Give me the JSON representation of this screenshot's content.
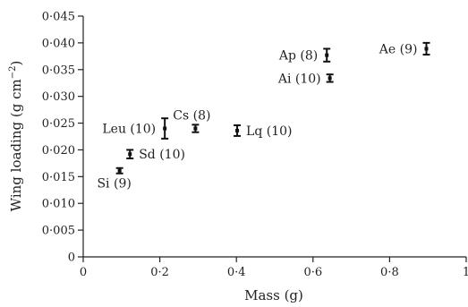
{
  "chart_data": {
    "type": "scatter",
    "xlabel": "Mass (g)",
    "ylabel": "Wing loading (g cm",
    "ylabel_sup": "−2",
    "ylabel_suffix": ")",
    "xlim": [
      0,
      1
    ],
    "ylim": [
      0,
      0.045
    ],
    "xticks": [
      0,
      0.2,
      0.4,
      0.6,
      0.8,
      1
    ],
    "xtick_labels": [
      "0",
      "0·2",
      "0·4",
      "0·6",
      "0·8",
      "1"
    ],
    "yticks": [
      0,
      0.005,
      0.01,
      0.015,
      0.02,
      0.025,
      0.03,
      0.035,
      0.04,
      0.045
    ],
    "ytick_labels": [
      "0",
      "0·005",
      "0·010",
      "0·015",
      "0·020",
      "0·025",
      "0·030",
      "0·035",
      "0·040",
      "0·045"
    ],
    "points": [
      {
        "label": "Si (9)",
        "x": 0.095,
        "y": 0.0161,
        "err": 0.0005,
        "label_pos": "below"
      },
      {
        "label": "Sd (10)",
        "x": 0.122,
        "y": 0.0192,
        "err": 0.0008,
        "label_pos": "right"
      },
      {
        "label": "Leu (10)",
        "x": 0.213,
        "y": 0.024,
        "err": 0.0019,
        "label_pos": "left"
      },
      {
        "label": "Cs (8)",
        "x": 0.293,
        "y": 0.024,
        "err": 0.0007,
        "label_pos": "above"
      },
      {
        "label": "Lq (10)",
        "x": 0.402,
        "y": 0.0236,
        "err": 0.001,
        "label_pos": "right"
      },
      {
        "label": "Ap (8)",
        "x": 0.636,
        "y": 0.0377,
        "err": 0.0012,
        "label_pos": "left"
      },
      {
        "label": "Ai (10)",
        "x": 0.644,
        "y": 0.0334,
        "err": 0.0007,
        "label_pos": "left"
      },
      {
        "label": "Ae (9)",
        "x": 0.896,
        "y": 0.0389,
        "err": 0.0011,
        "label_pos": "left"
      }
    ]
  }
}
